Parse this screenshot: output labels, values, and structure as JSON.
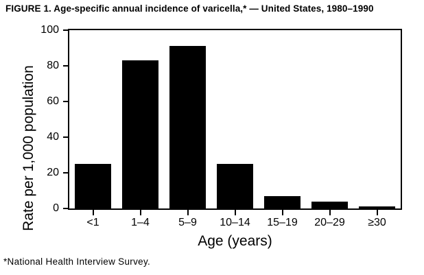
{
  "figure": {
    "title": "FIGURE 1. Age-specific annual incidence of varicella,* — United States, 1980–1990",
    "footnote": "*National Health Interview Survey."
  },
  "chart_data": {
    "type": "bar",
    "title": "FIGURE 1. Age-specific annual incidence of varicella,* — United States, 1980–1990",
    "categories": [
      "<1",
      "1–4",
      "5–9",
      "10–14",
      "15–19",
      "20–29",
      "≥30"
    ],
    "values": [
      25,
      83,
      91,
      25,
      7,
      4,
      1
    ],
    "xlabel": "Age (years)",
    "ylabel": "Rate per 1,000 population",
    "ylim": [
      0,
      100
    ],
    "yticks": [
      0,
      20,
      40,
      60,
      80,
      100
    ],
    "bar_color": "#000000",
    "background_color": "#ffffff",
    "grid": false,
    "legend": false,
    "footnote": "*National Health Interview Survey."
  }
}
